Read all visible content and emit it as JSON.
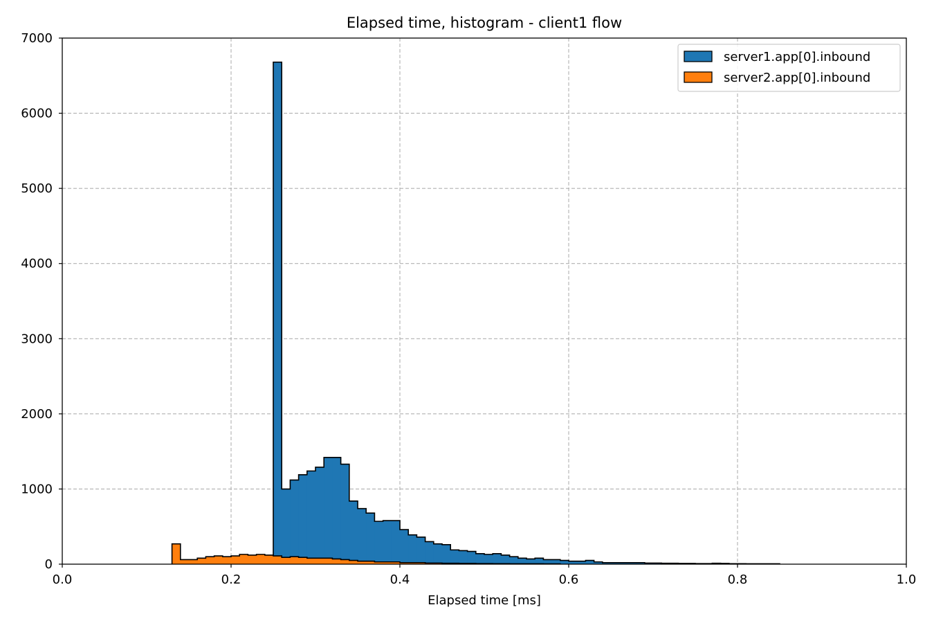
{
  "chart_data": {
    "type": "histogram",
    "title": "Elapsed time, histogram - client1 flow",
    "xlabel": "Elapsed time [ms]",
    "ylabel": "",
    "xlim": [
      0.0,
      1.0
    ],
    "ylim": [
      0,
      7000
    ],
    "xticks": [
      "0.0",
      "0.2",
      "0.4",
      "0.6",
      "0.8",
      "1.0"
    ],
    "xtick_values": [
      0.0,
      0.2,
      0.4,
      0.6,
      0.8,
      1.0
    ],
    "yticks": [
      "0",
      "1000",
      "2000",
      "3000",
      "4000",
      "5000",
      "6000",
      "7000"
    ],
    "ytick_values": [
      0,
      1000,
      2000,
      3000,
      4000,
      5000,
      6000,
      7000
    ],
    "grid": true,
    "legend_position": "top-right",
    "bin_width": 0.01,
    "series": [
      {
        "name": "server1.app[0].inbound",
        "color": "#1f77b4",
        "bin_start": 0.25,
        "counts": [
          6680,
          1000,
          1120,
          1190,
          1240,
          1290,
          1420,
          1420,
          1330,
          840,
          740,
          680,
          570,
          580,
          580,
          460,
          390,
          360,
          300,
          270,
          260,
          190,
          180,
          170,
          140,
          130,
          140,
          120,
          100,
          80,
          70,
          80,
          60,
          60,
          50,
          40,
          40,
          50,
          30,
          20,
          20,
          20,
          20,
          20,
          15,
          15,
          12,
          12,
          10,
          10,
          8,
          8,
          12,
          10,
          6,
          6,
          5,
          5,
          5,
          5
        ]
      },
      {
        "name": "server2.app[0].inbound",
        "color": "#ff7f0e",
        "bin_start": 0.13,
        "counts": [
          270,
          60,
          60,
          80,
          100,
          110,
          100,
          110,
          130,
          120,
          130,
          120,
          110,
          90,
          100,
          90,
          80,
          80,
          80,
          70,
          60,
          50,
          40,
          40,
          30,
          30,
          30,
          20,
          20,
          20,
          15,
          15,
          12,
          12,
          10,
          10,
          8,
          8,
          6,
          6,
          5,
          5,
          5,
          5,
          4,
          4
        ]
      }
    ]
  }
}
